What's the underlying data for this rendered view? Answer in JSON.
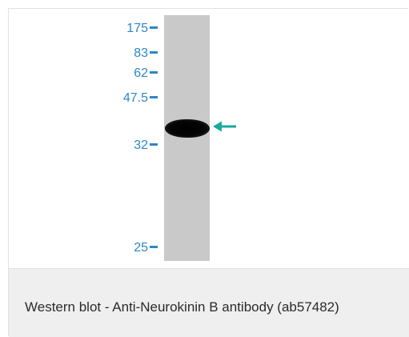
{
  "figure": {
    "markers": [
      {
        "label": "175"
      },
      {
        "label": "83"
      },
      {
        "label": "62"
      },
      {
        "label": "47.5"
      },
      {
        "label": "32"
      },
      {
        "label": "25"
      }
    ],
    "caption": "Western blot - Anti-Neurokinin B antibody (ab57482)",
    "colors": {
      "marker_text": "#2e87c6",
      "arrow": "#1aa99a",
      "lane": "#c9c9c9",
      "caption_bg": "#efefef"
    },
    "arrow_icon": "arrow-left-icon"
  }
}
